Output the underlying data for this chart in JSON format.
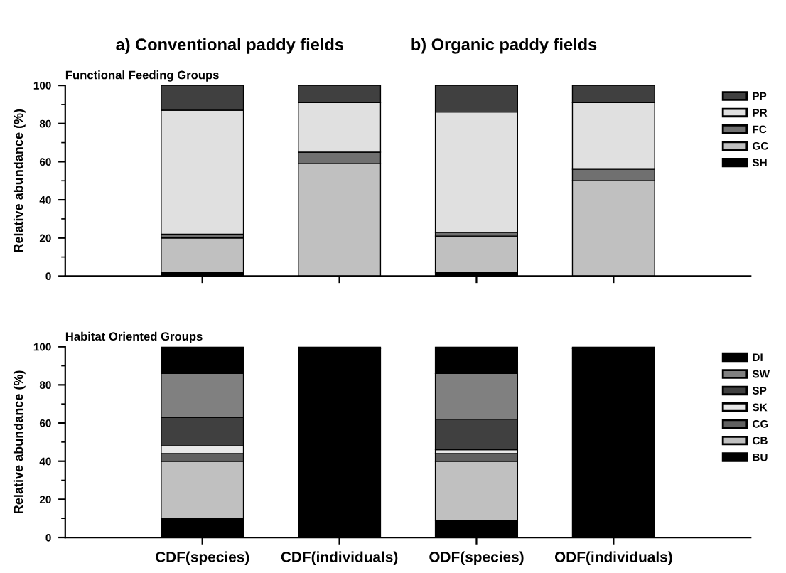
{
  "chart_data": [
    {
      "type": "bar",
      "title": "Functional Feeding Groups",
      "ylabel": "Relative abundance (%)",
      "annotations": [
        "a) Conventional paddy fields",
        "b) Organic paddy fields"
      ],
      "categories": [
        null,
        null,
        null,
        null
      ],
      "stacked": true,
      "ylim": [
        0,
        100
      ],
      "yticks": [
        0,
        20,
        40,
        60,
        80,
        100
      ],
      "tick_labels": "y",
      "legend": "right",
      "series": [
        {
          "name": "SH",
          "color": "#000000",
          "values": [
            2,
            0,
            2,
            0
          ]
        },
        {
          "name": "GC",
          "color": "#c0c0c0",
          "values": [
            18,
            59,
            19,
            50
          ]
        },
        {
          "name": "FC",
          "color": "#707070",
          "values": [
            2,
            6,
            2,
            6
          ]
        },
        {
          "name": "PR",
          "color": "#e0e0e0",
          "values": [
            65,
            26,
            63,
            35
          ]
        },
        {
          "name": "PP",
          "color": "#404040",
          "values": [
            13,
            9,
            14,
            9
          ]
        }
      ]
    },
    {
      "type": "bar",
      "title": "Habitat Oriented Groups",
      "ylabel": "Relative abundance (%)",
      "categories": [
        "CDF(species)",
        "CDF(individuals)",
        "ODF(species)",
        "ODF(individuals)"
      ],
      "stacked": true,
      "ylim": [
        0,
        100
      ],
      "yticks": [
        0,
        20,
        40,
        60,
        80,
        100
      ],
      "legend": "right",
      "series": [
        {
          "name": "BU",
          "color": "#000000",
          "values": [
            10,
            99,
            9,
            99
          ]
        },
        {
          "name": "CB",
          "color": "#c0c0c0",
          "values": [
            30,
            0,
            31,
            0
          ]
        },
        {
          "name": "CG",
          "color": "#606060",
          "values": [
            4,
            0,
            4,
            0
          ]
        },
        {
          "name": "SK",
          "color": "#e8e8e8",
          "values": [
            4,
            0,
            2,
            0
          ]
        },
        {
          "name": "SP",
          "color": "#404040",
          "values": [
            15,
            0,
            16,
            0
          ]
        },
        {
          "name": "SW",
          "color": "#808080",
          "values": [
            23,
            0,
            24,
            0
          ]
        },
        {
          "name": "DI",
          "color": "#000000",
          "values": [
            14,
            1,
            14,
            1
          ]
        }
      ]
    }
  ]
}
